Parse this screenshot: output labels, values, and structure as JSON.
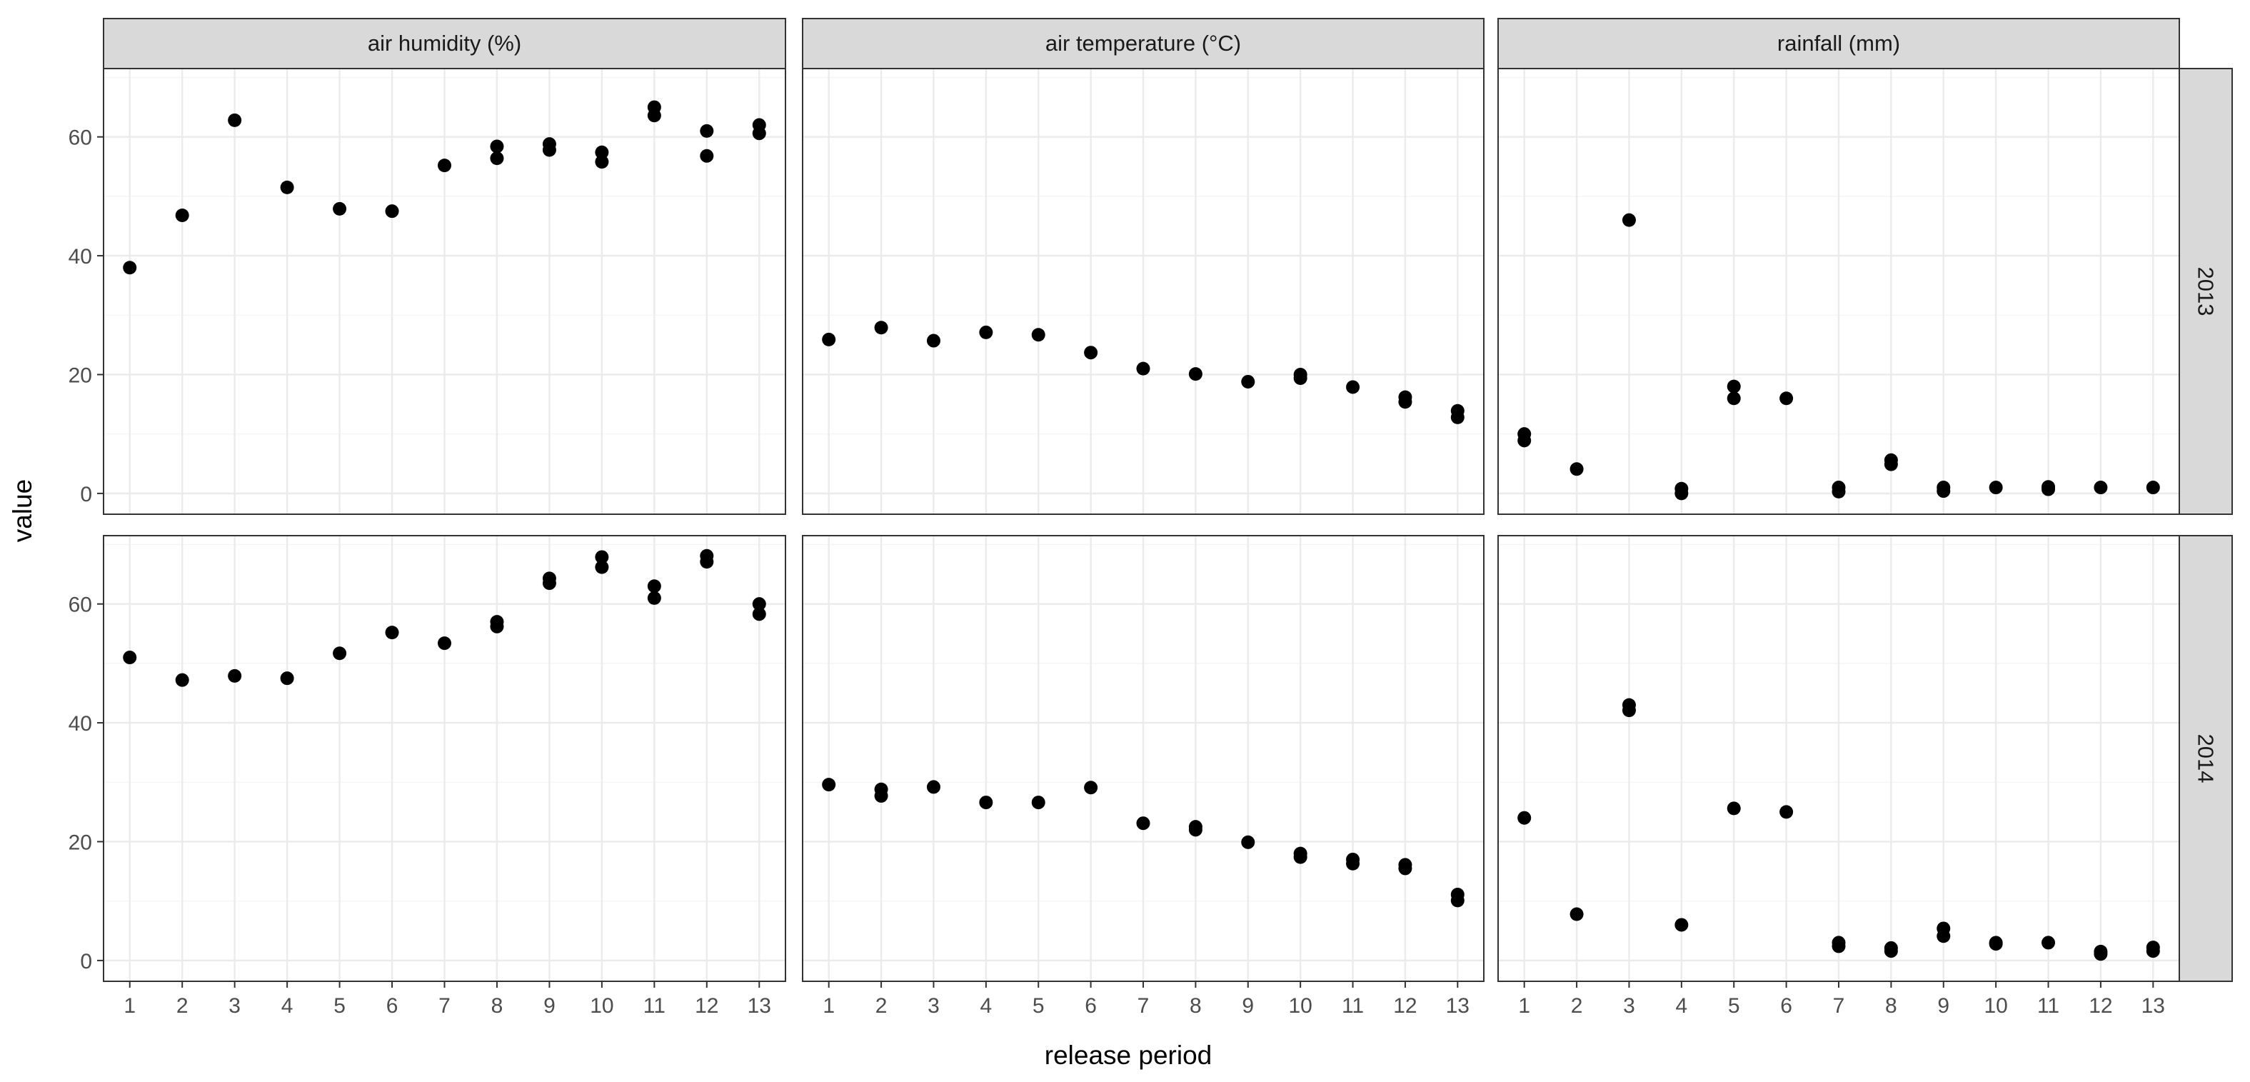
{
  "chart_data": {
    "type": "scatter",
    "xlabel": "release period",
    "ylabel": "value",
    "x_ticks": [
      "1",
      "2",
      "3",
      "4",
      "5",
      "6",
      "7",
      "8",
      "9",
      "10",
      "11",
      "12",
      "13"
    ],
    "y_ticks": [
      "0",
      "20",
      "40",
      "60"
    ],
    "xlim": [
      0.5,
      13.5
    ],
    "ylim": [
      -3.5,
      71.5
    ],
    "grid": true,
    "legend": "none",
    "columns": [
      "air humidity (%)",
      "air temperature (°C)",
      "rainfall (mm)"
    ],
    "rows": [
      "2013",
      "2014"
    ],
    "panels": [
      {
        "row": 0,
        "col": 0,
        "points": [
          [
            1,
            38
          ],
          [
            2,
            46.8
          ],
          [
            3,
            62.8
          ],
          [
            4,
            51.5
          ],
          [
            5,
            47.9
          ],
          [
            6,
            47.5
          ],
          [
            7,
            55.2
          ],
          [
            8,
            56.4
          ],
          [
            8,
            58.4
          ],
          [
            9,
            57.8
          ],
          [
            9,
            58.8
          ],
          [
            10,
            55.8
          ],
          [
            10,
            57.4
          ],
          [
            11,
            63.6
          ],
          [
            11,
            65
          ],
          [
            12,
            56.8
          ],
          [
            12,
            61
          ],
          [
            13,
            60.6
          ],
          [
            13,
            62
          ]
        ]
      },
      {
        "row": 0,
        "col": 1,
        "points": [
          [
            1,
            25.9
          ],
          [
            2,
            27.9
          ],
          [
            3,
            25.7
          ],
          [
            4,
            27.1
          ],
          [
            5,
            26.7
          ],
          [
            6,
            23.7
          ],
          [
            7,
            21
          ],
          [
            8,
            20.1
          ],
          [
            9,
            18.8
          ],
          [
            10,
            19.4
          ],
          [
            10,
            20
          ],
          [
            11,
            17.9
          ],
          [
            12,
            15.4
          ],
          [
            12,
            16.2
          ],
          [
            13,
            12.8
          ],
          [
            13,
            13.9
          ]
        ]
      },
      {
        "row": 0,
        "col": 2,
        "points": [
          [
            1,
            8.9
          ],
          [
            1,
            10
          ],
          [
            2,
            4.1
          ],
          [
            3,
            46
          ],
          [
            4,
            0
          ],
          [
            4,
            0.8
          ],
          [
            5,
            16
          ],
          [
            5,
            18
          ],
          [
            6,
            16
          ],
          [
            7,
            0.3
          ],
          [
            7,
            1
          ],
          [
            8,
            4.9
          ],
          [
            8,
            5.6
          ],
          [
            9,
            0.4
          ],
          [
            9,
            1
          ],
          [
            10,
            1
          ],
          [
            11,
            0.7
          ],
          [
            11,
            1.1
          ],
          [
            12,
            1
          ],
          [
            13,
            1
          ]
        ]
      },
      {
        "row": 1,
        "col": 0,
        "points": [
          [
            1,
            51
          ],
          [
            2,
            47.2
          ],
          [
            3,
            47.9
          ],
          [
            4,
            47.5
          ],
          [
            5,
            51.7
          ],
          [
            6,
            55.2
          ],
          [
            7,
            53.4
          ],
          [
            8,
            56.2
          ],
          [
            8,
            57
          ],
          [
            9,
            63.5
          ],
          [
            9,
            64.3
          ],
          [
            10,
            66.2
          ],
          [
            10,
            67.9
          ],
          [
            11,
            61
          ],
          [
            11,
            63
          ],
          [
            12,
            67.1
          ],
          [
            12,
            68.1
          ],
          [
            13,
            58.3
          ],
          [
            13,
            60
          ]
        ]
      },
      {
        "row": 1,
        "col": 1,
        "points": [
          [
            1,
            29.6
          ],
          [
            2,
            27.7
          ],
          [
            2,
            28.8
          ],
          [
            3,
            29.2
          ],
          [
            4,
            26.6
          ],
          [
            5,
            26.6
          ],
          [
            6,
            29.1
          ],
          [
            7,
            23.1
          ],
          [
            8,
            22
          ],
          [
            8,
            22.5
          ],
          [
            9,
            19.9
          ],
          [
            10,
            17.4
          ],
          [
            10,
            18
          ],
          [
            11,
            16.3
          ],
          [
            11,
            17
          ],
          [
            12,
            15.5
          ],
          [
            12,
            16.1
          ],
          [
            13,
            10.1
          ],
          [
            13,
            11.1
          ]
        ]
      },
      {
        "row": 1,
        "col": 2,
        "points": [
          [
            1,
            24
          ],
          [
            2,
            7.8
          ],
          [
            3,
            42.1
          ],
          [
            3,
            43
          ],
          [
            4,
            6
          ],
          [
            5,
            25.6
          ],
          [
            6,
            25
          ],
          [
            7,
            2.4
          ],
          [
            7,
            3
          ],
          [
            8,
            1.6
          ],
          [
            8,
            2.1
          ],
          [
            9,
            4.1
          ],
          [
            9,
            5.4
          ],
          [
            10,
            2.8
          ],
          [
            10,
            3
          ],
          [
            11,
            3
          ],
          [
            12,
            1.1
          ],
          [
            12,
            1.5
          ],
          [
            13,
            1.6
          ],
          [
            13,
            2.2
          ]
        ]
      }
    ]
  }
}
